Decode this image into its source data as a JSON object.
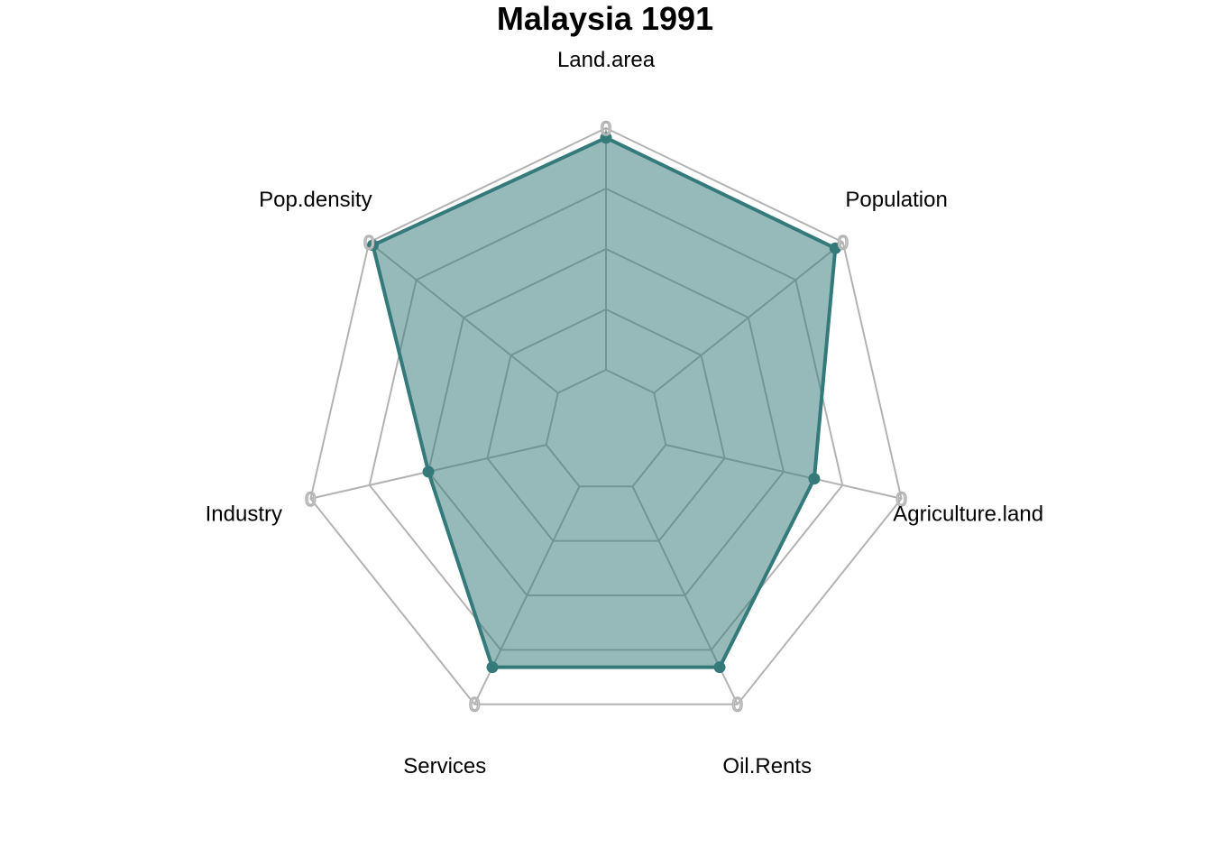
{
  "chart_data": {
    "type": "radar",
    "title": "Malaysia 1991",
    "axes": [
      "Land.area",
      "Population",
      "Agriculture.land",
      "Oil.Rents",
      "Services",
      "Industry",
      "Pop.density"
    ],
    "series": [
      {
        "values": [
          0.96,
          0.96,
          0.63,
          0.83,
          0.83,
          0.5,
          0.98
        ]
      }
    ],
    "range": [
      0,
      1
    ],
    "grid_levels": 5,
    "axis_tick_label": "0",
    "colors": {
      "series_line": "#357a7a",
      "series_fill": "#357a7a",
      "fill_opacity": 0.52,
      "grid": "#b3b3b3",
      "title": "#000000",
      "labels": "#000000"
    },
    "grid": true,
    "legend": "none"
  }
}
